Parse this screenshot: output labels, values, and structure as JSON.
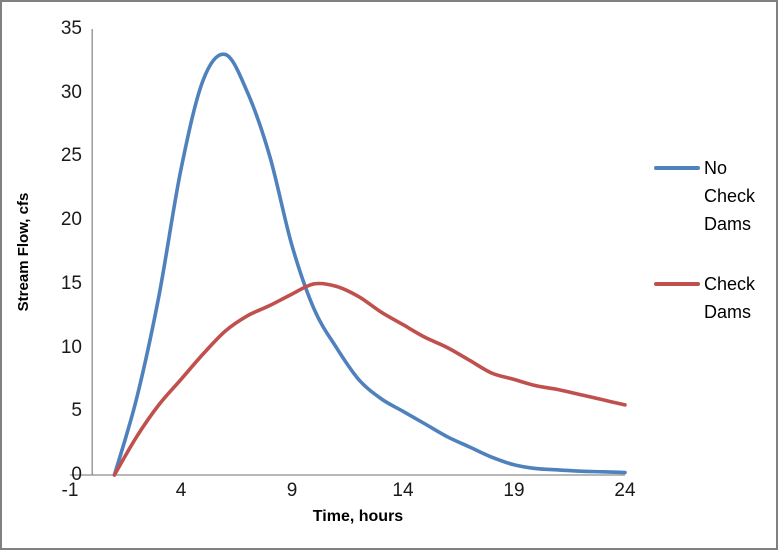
{
  "window": {
    "background": "#FFFFFF",
    "border_color": "#808080"
  },
  "chart_data": {
    "type": "line",
    "smoothed": true,
    "title": "",
    "xlabel": "Time, hours",
    "ylabel": "Stream Flow, cfs",
    "x": [
      1,
      2,
      3,
      4,
      5,
      6,
      7,
      8,
      9,
      10,
      11,
      12,
      13,
      14,
      15,
      16,
      17,
      18,
      19,
      20,
      21,
      22,
      23,
      24
    ],
    "series": [
      {
        "name": "No Check Dams",
        "color": "#4F81BD",
        "values": [
          0,
          6,
          14,
          24,
          31,
          33,
          30,
          25,
          18,
          13,
          10,
          7.5,
          6,
          5,
          4,
          3,
          2.2,
          1.4,
          0.8,
          0.5,
          0.4,
          0.3,
          0.25,
          0.2
        ]
      },
      {
        "name": "Check Dams",
        "color": "#C0504D",
        "values": [
          0,
          3,
          5.5,
          7.5,
          9.5,
          11.3,
          12.5,
          13.3,
          14.2,
          15,
          14.8,
          14,
          12.8,
          11.8,
          10.8,
          10,
          9,
          8,
          7.5,
          7,
          6.7,
          6.3,
          5.9,
          5.5
        ]
      }
    ],
    "xlim": [
      -1,
      24
    ],
    "ylim": [
      0,
      35
    ],
    "x_ticks": [
      -1,
      4,
      9,
      14,
      19,
      24
    ],
    "y_ticks": [
      0,
      5,
      10,
      15,
      20,
      25,
      30,
      35
    ],
    "grid": false,
    "tick_marks": false,
    "legend_position": "right",
    "axis_color": "#8C8C8C",
    "tick_text_color": "#1A1A1A"
  }
}
